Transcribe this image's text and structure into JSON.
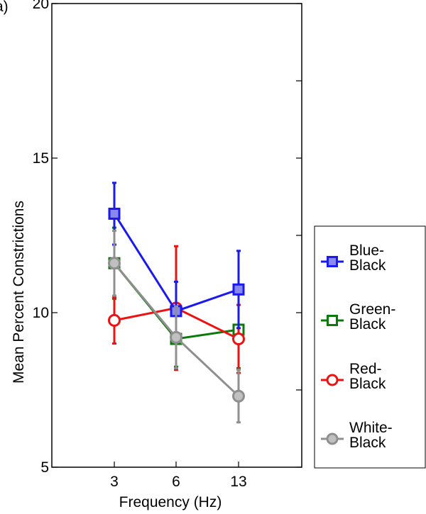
{
  "panel_label": "(a)",
  "chart_data": {
    "type": "line",
    "x": [
      "3",
      "6",
      "13"
    ],
    "xlabel": "Frequency (Hz)",
    "ylabel": "Mean Percent Constrictions",
    "ylim": [
      5,
      20
    ],
    "y_ticks": [
      "5",
      "10",
      "15",
      "20"
    ],
    "grid": false,
    "legend_position": "right",
    "series": [
      {
        "name": "Blue-Black",
        "name_lines": [
          "Blue-",
          "Black"
        ],
        "color": "#1a1aee",
        "fill": "#8888ee",
        "marker": "square",
        "values": [
          13.2,
          10.05,
          10.75
        ],
        "err": [
          1.0,
          0.95,
          1.25
        ]
      },
      {
        "name": "Green-Black",
        "name_lines": [
          "Green-",
          "Black"
        ],
        "color": "#0a7a0a",
        "fill": "#ffffff",
        "marker": "square",
        "values": [
          11.6,
          9.15,
          9.45
        ],
        "err": [
          1.15,
          0.9,
          1.25
        ]
      },
      {
        "name": "Red-Black",
        "name_lines": [
          "Red-",
          "Black"
        ],
        "color": "#ee1111",
        "fill": "#ffffff",
        "marker": "circle",
        "values": [
          9.75,
          10.15,
          9.15
        ],
        "err": [
          0.75,
          2.0,
          1.1
        ]
      },
      {
        "name": "White-Black",
        "name_lines": [
          "White-",
          "Black"
        ],
        "color": "#8f8f8f",
        "fill": "#c0c0c0",
        "marker": "circle",
        "values": [
          11.6,
          9.2,
          7.3
        ],
        "err": [
          1.05,
          1.0,
          0.85
        ]
      }
    ]
  }
}
